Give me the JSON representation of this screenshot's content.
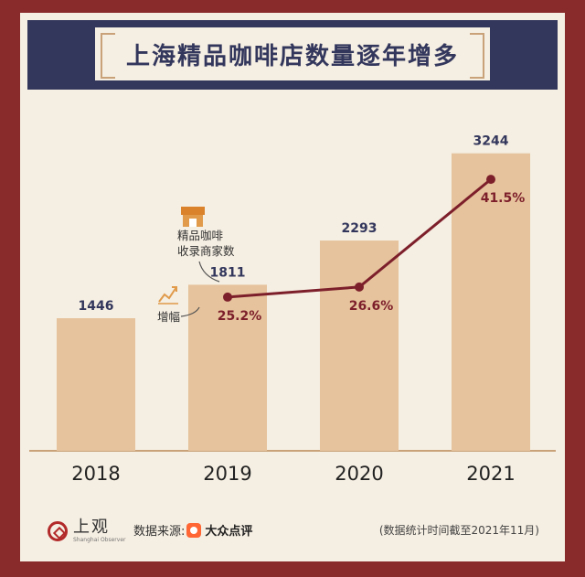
{
  "title": "上海精品咖啡店数量逐年增多",
  "chart_data": {
    "type": "bar",
    "categories": [
      "2018",
      "2019",
      "2020",
      "2021"
    ],
    "series": [
      {
        "values": [
          1446,
          1811,
          2293,
          3244
        ]
      }
    ],
    "line_series": {
      "label": "增幅",
      "categories": [
        "2019",
        "2020",
        "2021"
      ],
      "values": [
        "25.2%",
        "26.6%",
        "41.5%"
      ],
      "numeric": [
        25.2,
        26.6,
        41.5
      ]
    },
    "bar_annotation": "精品咖啡\n收录商家数",
    "ylim": [
      0,
      3600
    ],
    "colors": {
      "bar": "#e6c39c",
      "line": "#7d1f2b",
      "label": "#33375c",
      "pct": "#7d1f2b"
    },
    "icons": {
      "bar_icon": "store-icon",
      "line_icon": "rising-chart-icon"
    }
  },
  "footer": {
    "logo_cn": "上观",
    "logo_en": "Shanghai Observer",
    "source_label": "数据来源:",
    "source_name": "大众点评",
    "note": "(数据统计时间截至2021年11月)"
  }
}
